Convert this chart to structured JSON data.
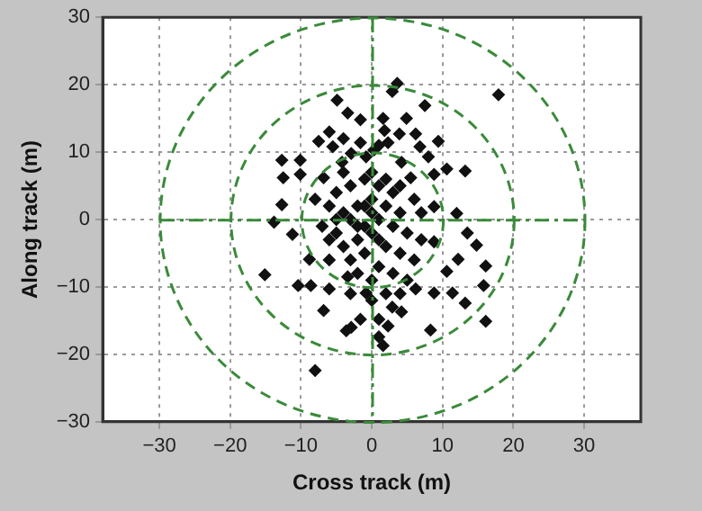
{
  "chart_data": {
    "type": "scatter",
    "xlabel": "Cross track (m)",
    "ylabel": "Along track (m)",
    "xlim": [
      -38,
      38
    ],
    "ylim": [
      -30,
      30
    ],
    "xticks": [
      -30,
      -20,
      -10,
      0,
      10,
      20,
      30
    ],
    "yticks": [
      -30,
      -20,
      -10,
      0,
      10,
      20,
      30
    ],
    "grid": true,
    "marker": "diamond",
    "series": [
      {
        "color": "#111111",
        "x": [
          3.6,
          2.9,
          17.9,
          -4.9,
          7.5,
          -3.4,
          -1.6,
          1.6,
          4.9,
          1.8,
          3.9,
          6.2,
          -7.5,
          -5.5,
          -1.6,
          0.3,
          2.3,
          6.8,
          9.4,
          -2.9,
          -0.8,
          8,
          -12.7,
          -10.1,
          -4.2,
          4.2,
          10.6,
          13.2,
          -12.5,
          -6.8,
          5.5,
          8.8,
          -10.1,
          -12.7,
          -13.8,
          -11.2,
          8.8,
          12,
          13.5,
          14.8,
          8.8,
          16.1,
          12.2,
          10.6,
          -15.1,
          -8.8,
          -8.6,
          -10.4,
          -6,
          -3.4,
          -0.8,
          6.2,
          8.8,
          11.4,
          15.8,
          16.1,
          13.2,
          2.9,
          4.2,
          -6.8,
          1,
          -1.6,
          -2.9,
          -3.6,
          2.3,
          8.3,
          1,
          1.6,
          -8,
          -5,
          -3,
          -1,
          1,
          3,
          -6,
          -4,
          -2,
          0,
          2,
          4,
          6,
          -7,
          -5,
          -3,
          -1,
          1,
          3,
          5,
          -4,
          -2,
          0,
          2,
          4,
          6,
          -6,
          -3,
          -1,
          1,
          3,
          5,
          -2,
          0,
          2,
          -5,
          -1,
          1,
          -2,
          0,
          2,
          -4,
          0,
          4,
          7,
          -8,
          -6,
          7,
          -3,
          0,
          4,
          1,
          -4,
          -6
        ],
        "values": [
          20.2,
          19,
          18.5,
          17.7,
          16.9,
          15.8,
          14.8,
          15,
          15,
          13.2,
          12.7,
          12.7,
          11.6,
          10.8,
          11.4,
          10.3,
          11.4,
          10.8,
          11.6,
          9.8,
          9.3,
          9.3,
          8.8,
          8.8,
          8.5,
          8.5,
          7.5,
          7.2,
          6.2,
          6.2,
          6.2,
          6.7,
          6.7,
          2.2,
          -0.4,
          -2.2,
          1.9,
          0.9,
          -2,
          -3.8,
          -3.3,
          -6.9,
          -5.9,
          -7.7,
          -8.2,
          -5.9,
          -9.8,
          -9.8,
          -10.3,
          -8.5,
          -10.9,
          -10.3,
          -10.9,
          -10.9,
          -9.8,
          -15.1,
          -12.4,
          -13,
          -13.7,
          -13.5,
          -14.8,
          -14.8,
          -16,
          -16.5,
          -15.8,
          -16.4,
          -17.4,
          -18.7,
          -22.4,
          4,
          5,
          6,
          5,
          4,
          2,
          1,
          2,
          3,
          2,
          1,
          3,
          -1,
          -2,
          0,
          -1,
          0,
          -1,
          -2,
          -4,
          -3,
          -2,
          -4,
          -5,
          -6,
          -6,
          -6,
          -5,
          -7,
          -8,
          -9,
          -8,
          -9,
          -11,
          0,
          2,
          -3,
          -1,
          1,
          6,
          7,
          7,
          5,
          -3,
          3,
          -3,
          1,
          -11,
          -12,
          -11,
          11,
          12,
          13
        ]
      }
    ]
  }
}
